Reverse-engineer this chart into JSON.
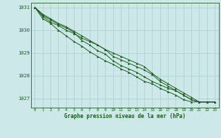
{
  "title": "Graphe pression niveau de la mer (hPa)",
  "background_color": "#cce8e8",
  "plot_bg_color": "#cce8e8",
  "grid_color": "#aacccc",
  "line_color": "#1a5c1a",
  "marker_color": "#1a5c1a",
  "xlim": [
    -0.5,
    23.5
  ],
  "ylim": [
    1026.6,
    1031.2
  ],
  "yticks": [
    1027,
    1028,
    1029,
    1030,
    1031
  ],
  "xticks": [
    0,
    1,
    2,
    3,
    4,
    5,
    6,
    7,
    8,
    9,
    10,
    11,
    12,
    13,
    14,
    15,
    16,
    17,
    18,
    19,
    20,
    21,
    22,
    23
  ],
  "series": [
    [
      1031.0,
      1030.7,
      1030.5,
      1030.3,
      1030.15,
      1029.95,
      1029.75,
      1029.55,
      1029.35,
      1029.15,
      1029.0,
      1028.85,
      1028.7,
      1028.55,
      1028.4,
      1028.1,
      1027.85,
      1027.65,
      1027.45,
      1027.25,
      1027.05,
      1026.85,
      1026.85,
      1026.85
    ],
    [
      1031.0,
      1030.6,
      1030.35,
      1030.2,
      1030.0,
      1029.85,
      1029.65,
      1029.5,
      1029.35,
      1029.15,
      1028.85,
      1028.7,
      1028.55,
      1028.4,
      1028.25,
      1028.05,
      1027.75,
      1027.55,
      1027.35,
      1027.15,
      1026.95,
      1026.85,
      1026.85,
      1026.85
    ],
    [
      1031.0,
      1030.65,
      1030.45,
      1030.25,
      1030.1,
      1029.9,
      1029.55,
      1029.35,
      1029.1,
      1028.95,
      1028.65,
      1028.45,
      1028.3,
      1028.15,
      1027.95,
      1027.75,
      1027.6,
      1027.45,
      1027.35,
      1027.15,
      1026.95,
      1026.85,
      1026.85,
      1026.85
    ],
    [
      1031.0,
      1030.5,
      1030.3,
      1030.0,
      1029.75,
      1029.5,
      1029.3,
      1029.05,
      1028.85,
      1028.65,
      1028.5,
      1028.3,
      1028.15,
      1027.95,
      1027.75,
      1027.65,
      1027.45,
      1027.3,
      1027.15,
      1026.95,
      1026.85,
      1026.85,
      1026.85,
      1026.85
    ]
  ]
}
